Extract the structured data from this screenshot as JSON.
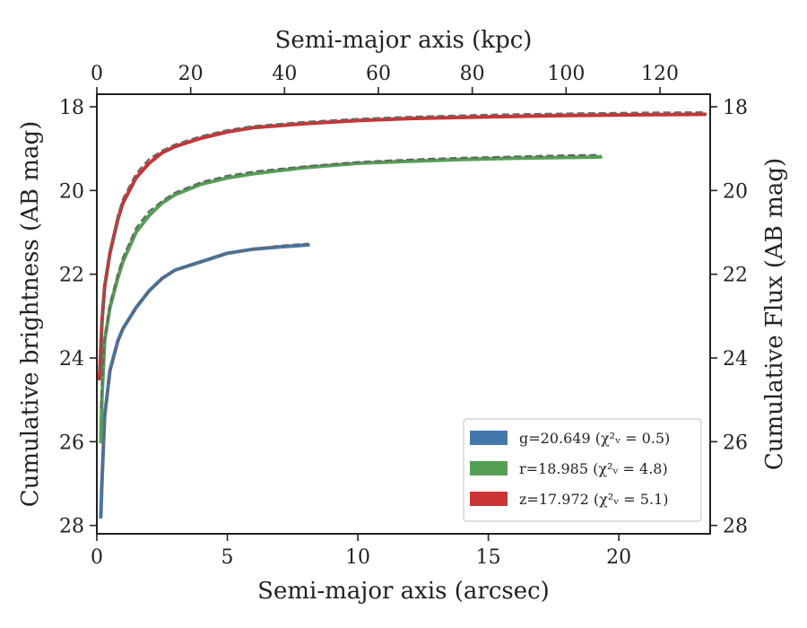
{
  "chart_data": {
    "type": "line",
    "xlabel": "Semi-major axis (arcsec)",
    "x2label": "Semi-major axis (kpc)",
    "ylabel": "Cumulative brightness (AB mag)",
    "y2label": "Cumulative Flux (AB mag)",
    "xlim": [
      0,
      23.5
    ],
    "x2lim": [
      0,
      130.7
    ],
    "ylim": [
      28.2,
      17.7
    ],
    "y_inverted": true,
    "x_ticks": [
      0,
      5,
      10,
      15,
      20
    ],
    "x2_ticks": [
      0,
      20,
      40,
      60,
      80,
      100,
      120
    ],
    "y_ticks": [
      18,
      20,
      22,
      24,
      26,
      28
    ],
    "legend_position": "lower-right",
    "grid": false,
    "series": [
      {
        "name": "g=20.649",
        "chi2_label": "(χ²ᵥ = 0.5)",
        "color": "#4477aa",
        "x": [
          0.15,
          0.2,
          0.3,
          0.5,
          0.8,
          1.0,
          1.5,
          2.0,
          2.5,
          3.0,
          4.0,
          5.0,
          6.0,
          7.0,
          8.1
        ],
        "y": [
          27.8,
          26.9,
          25.4,
          24.3,
          23.6,
          23.3,
          22.8,
          22.4,
          22.1,
          21.9,
          21.7,
          21.5,
          21.4,
          21.35,
          21.3
        ],
        "model_y": [
          27.2,
          26.7,
          25.3,
          24.3,
          23.6,
          23.3,
          22.8,
          22.4,
          22.1,
          21.9,
          21.7,
          21.5,
          21.4,
          21.32,
          21.27
        ]
      },
      {
        "name": "r=18.985",
        "chi2_label": "(χ²ᵥ = 4.8)",
        "color": "#55a055",
        "x": [
          0.15,
          0.2,
          0.3,
          0.5,
          0.8,
          1.0,
          1.5,
          2.0,
          2.5,
          3.0,
          4.0,
          5.0,
          6.0,
          8.0,
          10.0,
          12.0,
          14.0,
          16.0,
          18.0,
          19.3
        ],
        "y": [
          26.0,
          24.9,
          23.6,
          22.8,
          22.1,
          21.7,
          21.0,
          20.6,
          20.3,
          20.1,
          19.85,
          19.7,
          19.6,
          19.45,
          19.35,
          19.3,
          19.26,
          19.23,
          19.21,
          19.2
        ],
        "model_y": [
          25.2,
          24.6,
          23.5,
          22.7,
          22.0,
          21.6,
          20.9,
          20.5,
          20.25,
          20.05,
          19.8,
          19.65,
          19.55,
          19.42,
          19.32,
          19.26,
          19.22,
          19.19,
          19.16,
          19.15
        ]
      },
      {
        "name": "z=17.972",
        "chi2_label": "(χ²ᵥ = 5.1)",
        "color": "#cc3333",
        "x": [
          0.1,
          0.15,
          0.2,
          0.3,
          0.5,
          0.8,
          1.0,
          1.5,
          2.0,
          2.5,
          3.0,
          4.0,
          5.0,
          6.0,
          8.0,
          10.0,
          12.0,
          15.0,
          18.0,
          21.0,
          23.3
        ],
        "y": [
          24.5,
          23.8,
          23.1,
          22.3,
          21.5,
          20.7,
          20.3,
          19.7,
          19.35,
          19.1,
          18.95,
          18.75,
          18.6,
          18.5,
          18.4,
          18.33,
          18.28,
          18.24,
          18.21,
          18.19,
          18.18
        ],
        "model_y": [
          24.3,
          23.6,
          23.0,
          22.2,
          21.4,
          20.6,
          20.2,
          19.6,
          19.25,
          19.05,
          18.9,
          18.7,
          18.56,
          18.46,
          18.36,
          18.29,
          18.24,
          18.19,
          18.16,
          18.14,
          18.13
        ]
      }
    ]
  }
}
